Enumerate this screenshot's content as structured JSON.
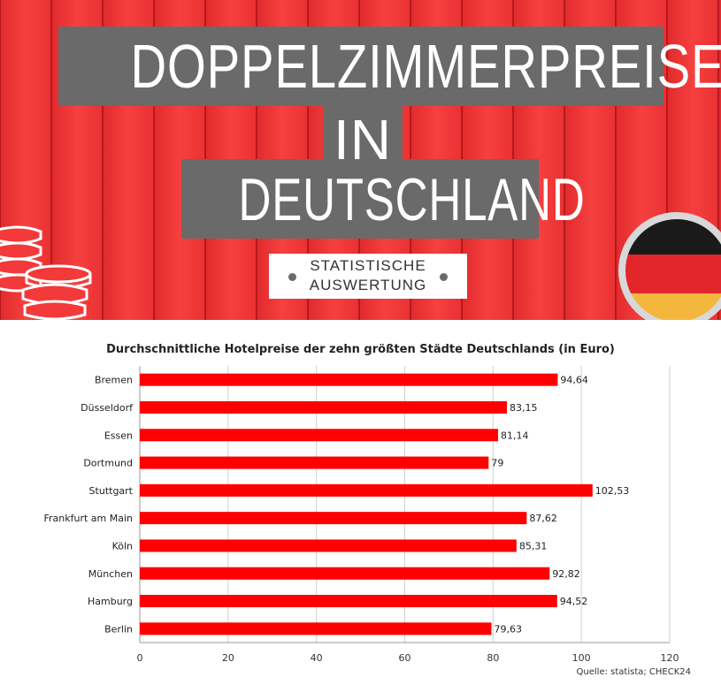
{
  "banner": {
    "title_line1": "DOPPELZIMMERPREISE",
    "title_line2": "IN",
    "title_line3": "DEUTSCHLAND",
    "subtitle_line1": "STATISTISCHE",
    "subtitle_line2": "AUSWERTUNG",
    "background_color": "#f3393a",
    "title_box_color": "#6a6a6a",
    "flag_colors": [
      "#1a1a1a",
      "#e3262a",
      "#f4b73e"
    ]
  },
  "chart_data": {
    "type": "bar",
    "orientation": "horizontal",
    "title": "Durchschnittliche Hotelpreise der zehn größten Städte Deutschlands (in Euro)",
    "categories": [
      "Bremen",
      "Düsseldorf",
      "Essen",
      "Dortmund",
      "Stuttgart",
      "Frankfurt am Main",
      "Köln",
      "München",
      "Hamburg",
      "Berlin"
    ],
    "values": [
      94.64,
      83.15,
      81.14,
      79,
      102.53,
      87.62,
      85.31,
      92.82,
      94.52,
      79.63
    ],
    "value_labels": [
      "94,64",
      "83,15",
      "81,14",
      "79",
      "102,53",
      "87,62",
      "85,31",
      "92,82",
      "94,52",
      "79,63"
    ],
    "xlim": [
      0,
      120
    ],
    "xticks": [
      "0",
      "20",
      "40",
      "60",
      "80",
      "100",
      "120"
    ],
    "xtick_values": [
      0,
      20,
      40,
      60,
      80,
      100,
      120
    ],
    "grid": true,
    "bar_color": "#ff0000",
    "source": "Quelle: statista; CHECK24"
  }
}
